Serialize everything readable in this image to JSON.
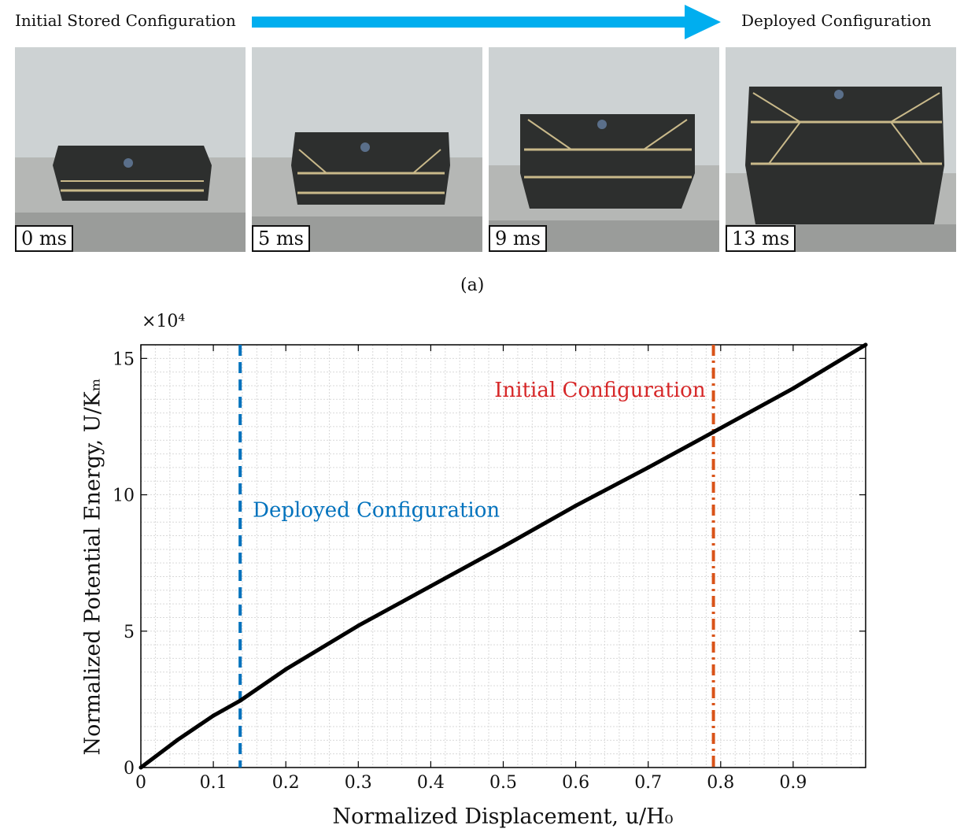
{
  "header": {
    "left_label": "Initial Stored Configuration",
    "right_label": "Deployed Configuration",
    "arrow_color": "#00aeef"
  },
  "frames": [
    {
      "time": "0 ms"
    },
    {
      "time": "5 ms"
    },
    {
      "time": "9 ms"
    },
    {
      "time": "13 ms"
    }
  ],
  "subfigure_label": "(a)",
  "chart_data": {
    "type": "line",
    "xlabel": "Normalized Displacement, u/H₀",
    "ylabel": "Normalized Potential Energy, U/Kₘ",
    "y_multiplier": "×10⁴",
    "xlim": [
      0,
      1.0
    ],
    "ylim": [
      0,
      15.5
    ],
    "x_ticks": [
      "0",
      "0.1",
      "0.2",
      "0.3",
      "0.4",
      "0.5",
      "0.6",
      "0.7",
      "0.8",
      "0.9"
    ],
    "y_ticks": [
      "0",
      "5",
      "10",
      "15"
    ],
    "grid": "minor",
    "series": [
      {
        "color": "#000000",
        "x": [
          0,
          0.05,
          0.1,
          0.137,
          0.2,
          0.3,
          0.4,
          0.5,
          0.6,
          0.7,
          0.79,
          0.9,
          1.0
        ],
        "y": [
          0,
          1.0,
          1.9,
          2.45,
          3.6,
          5.2,
          6.65,
          8.1,
          9.6,
          11.0,
          12.3,
          13.9,
          15.5
        ]
      }
    ],
    "annotations": [
      {
        "label": "Deployed Configuration",
        "x": 0.137,
        "style": "dashed",
        "color": "#0072bd"
      },
      {
        "label": "Initial Configuration",
        "x": 0.79,
        "style": "dash-dot",
        "color": "#d95319",
        "text_color": "#d62728"
      }
    ]
  }
}
